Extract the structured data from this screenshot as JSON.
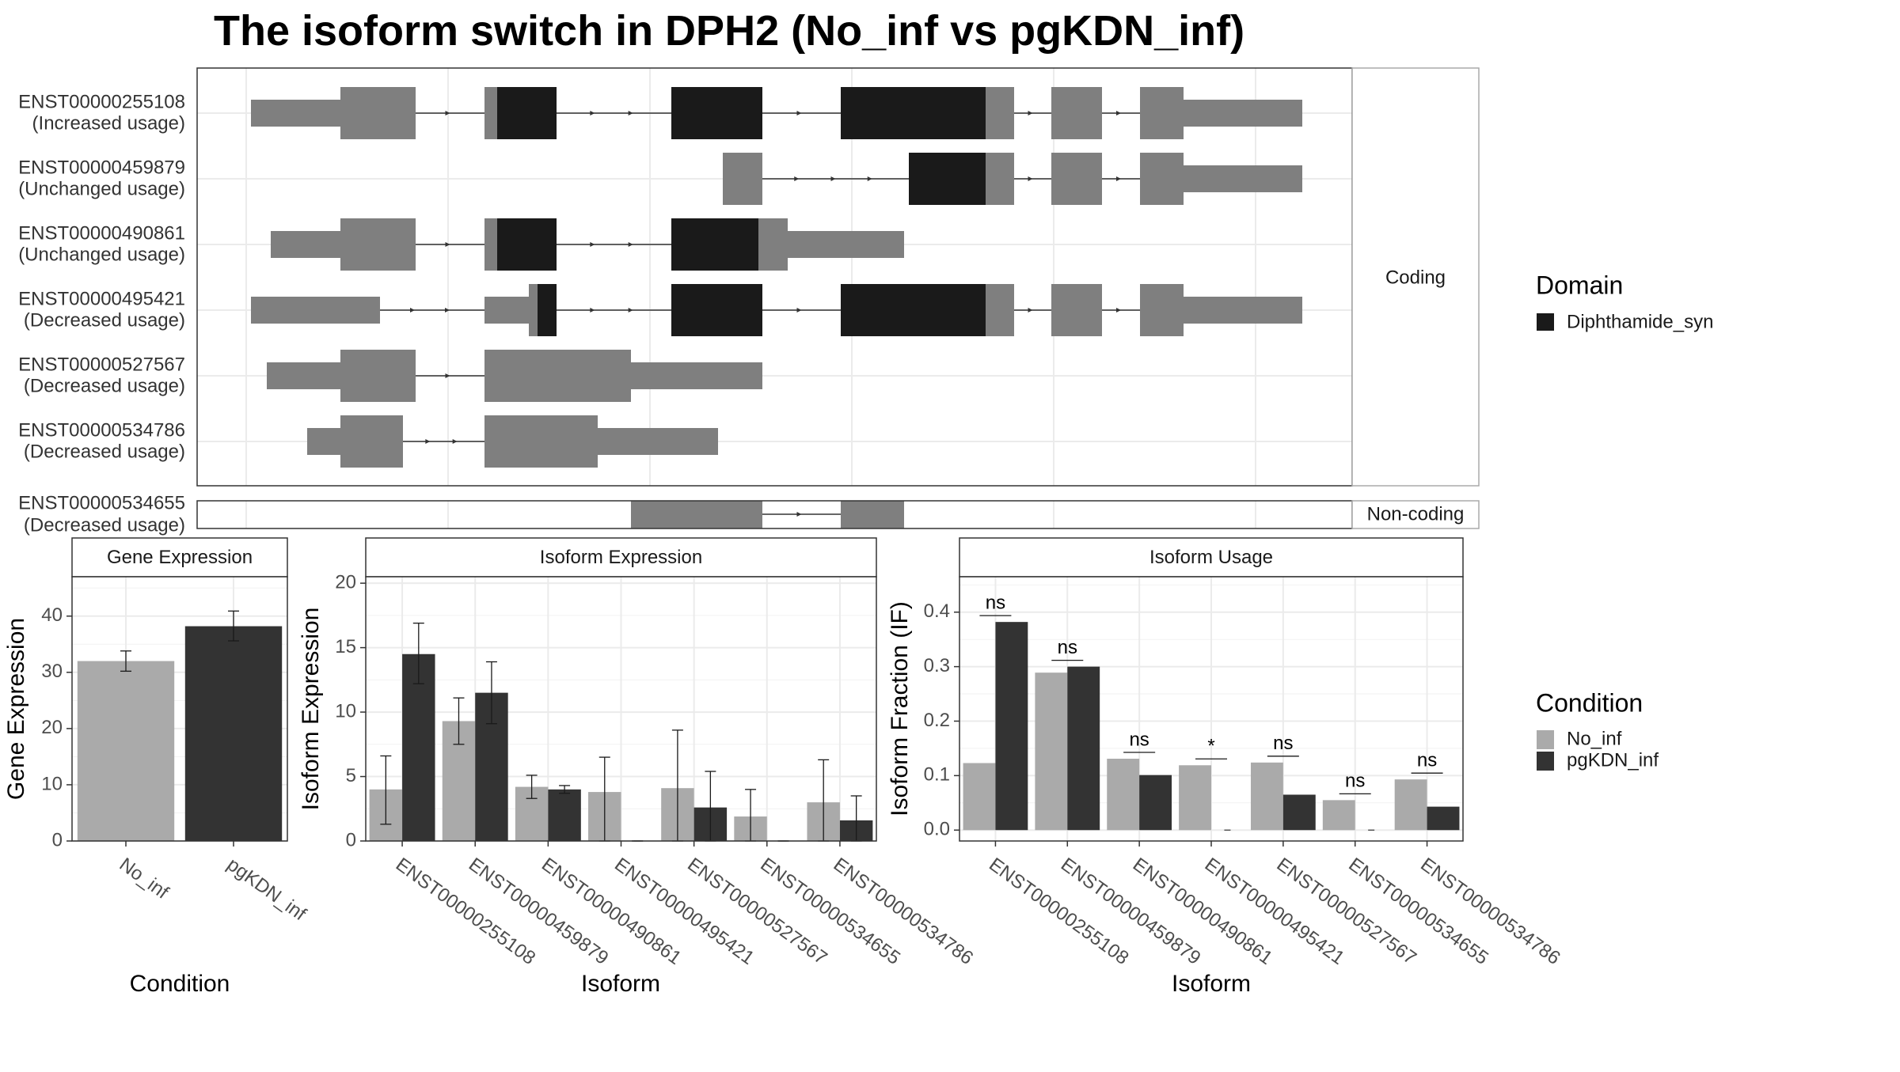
{
  "title": "The isoform switch in DPH2 (No_inf vs pgKDN_inf)",
  "colors": {
    "domain": "#1a1a1a",
    "exon": "#7f7f7f",
    "no_inf": "#aaaaaa",
    "pgKDN_inf": "#333333",
    "grid": "#ebebeb",
    "strip_bg": "#ffffff",
    "panel_border": "#333333"
  },
  "structure": {
    "coding_label": "Coding",
    "noncoding_label": "Non-coding",
    "coding_isoforms": [
      {
        "id": "ENST00000255108",
        "usage": "(Increased usage)"
      },
      {
        "id": "ENST00000459879",
        "usage": "(Unchanged usage)"
      },
      {
        "id": "ENST00000490861",
        "usage": "(Unchanged usage)"
      },
      {
        "id": "ENST00000495421",
        "usage": "(Decreased usage)"
      },
      {
        "id": "ENST00000527567",
        "usage": "(Decreased usage)"
      },
      {
        "id": "ENST00000534786",
        "usage": "(Decreased usage)"
      }
    ],
    "noncoding_isoforms": [
      {
        "id": "ENST00000534655",
        "usage": "(Decreased usage)"
      }
    ]
  },
  "legend": {
    "domain_title": "Domain",
    "domain_items": [
      {
        "label": "Diphthamide_syn",
        "color": "#1a1a1a"
      }
    ],
    "condition_title": "Condition",
    "condition_items": [
      {
        "label": "No_inf",
        "color": "#aaaaaa"
      },
      {
        "label": "pgKDN_inf",
        "color": "#333333"
      }
    ]
  },
  "chart_data": [
    {
      "type": "bar",
      "title": "Gene Expression",
      "xlabel": "Condition",
      "ylabel": "Gene Expression",
      "ylim": [
        0,
        47
      ],
      "yticks": [
        0,
        10,
        20,
        30,
        40
      ],
      "categories": [
        "No_inf",
        "pgKDN_inf"
      ],
      "values": [
        32,
        38.2
      ],
      "error_low": [
        30.2,
        35.6
      ],
      "error_high": [
        33.8,
        40.9
      ],
      "grid": true
    },
    {
      "type": "bar",
      "title": "Isoform Expression",
      "xlabel": "Isoform",
      "ylabel": "Isoform Expression",
      "ylim": [
        0,
        20.5
      ],
      "yticks": [
        0,
        5,
        10,
        15,
        20
      ],
      "categories": [
        "ENST00000255108",
        "ENST00000459879",
        "ENST00000490861",
        "ENST00000495421",
        "ENST00000527567",
        "ENST00000534655",
        "ENST00000534786"
      ],
      "series": [
        {
          "name": "No_inf",
          "values": [
            4.0,
            9.3,
            4.2,
            3.8,
            4.1,
            1.9,
            3.0
          ],
          "error_low": [
            1.3,
            7.5,
            3.3,
            0.0,
            0.0,
            0.0,
            0.0
          ],
          "error_high": [
            6.6,
            11.1,
            5.1,
            6.5,
            8.6,
            4.0,
            6.3
          ]
        },
        {
          "name": "pgKDN_inf",
          "values": [
            14.5,
            11.5,
            4.0,
            0.0,
            2.6,
            0.0,
            1.6
          ],
          "error_low": [
            12.2,
            9.1,
            3.7,
            0.0,
            0.0,
            0.0,
            0.0
          ],
          "error_high": [
            16.9,
            13.9,
            4.3,
            0.0,
            5.4,
            0.0,
            3.5
          ]
        }
      ],
      "grid": true
    },
    {
      "type": "bar",
      "title": "Isoform Usage",
      "xlabel": "Isoform",
      "ylabel": "Isoform Fraction (IF)",
      "ylim": [
        -0.02,
        0.465
      ],
      "yticks": [
        0.0,
        0.1,
        0.2,
        0.3,
        0.4
      ],
      "categories": [
        "ENST00000255108",
        "ENST00000459879",
        "ENST00000490861",
        "ENST00000495421",
        "ENST00000527567",
        "ENST00000534655",
        "ENST00000534786"
      ],
      "series": [
        {
          "name": "No_inf",
          "values": [
            0.123,
            0.289,
            0.131,
            0.119,
            0.124,
            0.055,
            0.093
          ]
        },
        {
          "name": "pgKDN_inf",
          "values": [
            0.382,
            0.3,
            0.101,
            0.0,
            0.065,
            0.0,
            0.043
          ]
        }
      ],
      "significance": [
        "ns",
        "ns",
        "ns",
        "*",
        "ns",
        "ns",
        "ns"
      ],
      "grid": true
    }
  ]
}
